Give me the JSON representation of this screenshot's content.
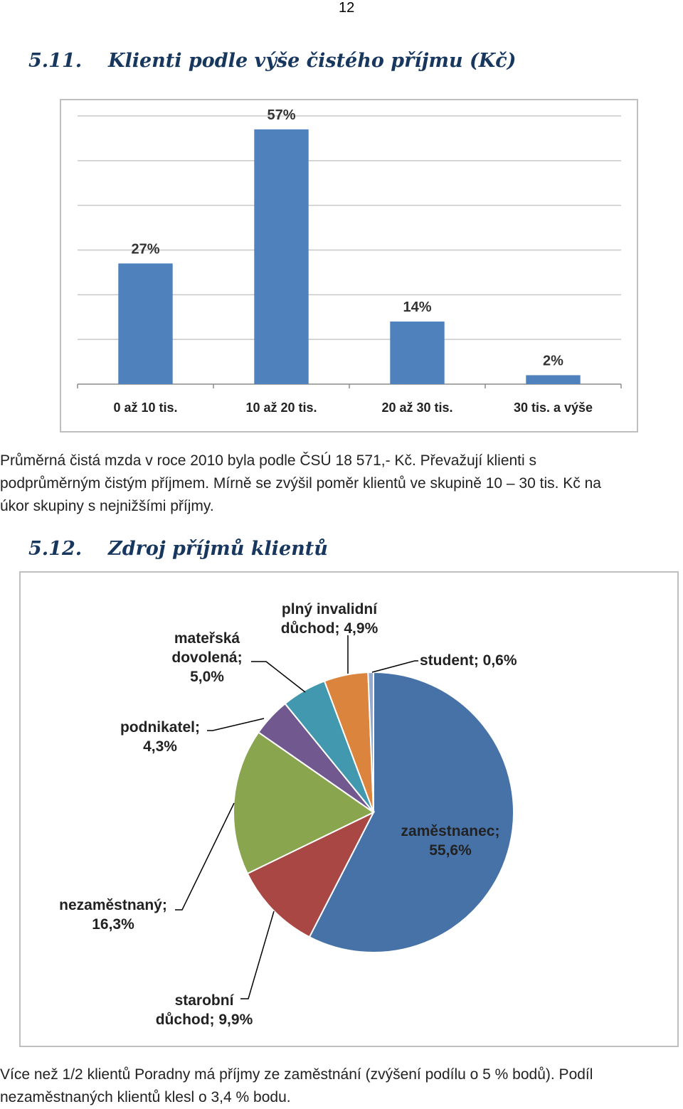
{
  "page_number": "12",
  "section1": {
    "number": "5.11.",
    "title": "Klienti podle výše čistého příjmu (Kč)"
  },
  "paragraph1": {
    "lines": [
      "Průměrná čistá mzda v roce 2010 byla podle ČSÚ 18 571,- Kč. Převažují klienti s",
      "podprůměrným čistým příjmem. Mírně se zvýšil poměr klientů ve skupině 10 – 30 tis. Kč na",
      "úkor skupiny s nejnižšími příjmy."
    ]
  },
  "section2": {
    "number": "5.12.",
    "title": "Zdroj příjmů klientů"
  },
  "paragraph2": {
    "lines": [
      "Více než 1/2 klientů Poradny má příjmy ze zaměstnání (zvýšení podílu o 5 % bodů). Podíl",
      "nezaměstnaných klientů klesl o 3,4 % bodu."
    ]
  },
  "chart_data": [
    {
      "type": "bar",
      "categories": [
        "0 až 10 tis.",
        "10 až 20 tis.",
        "20 až 30 tis.",
        "30 tis. a výše"
      ],
      "values": [
        27,
        57,
        14,
        2
      ],
      "value_labels": [
        "27%",
        "57%",
        "14%",
        "2%"
      ],
      "unit": "%",
      "ylim": [
        0,
        60
      ],
      "grid": true,
      "bar_color": "#4F81BD",
      "title": "",
      "xlabel": "",
      "ylabel": ""
    },
    {
      "type": "pie",
      "slices": [
        {
          "label": "zaměstnanec; 55,6%",
          "value": 55.6,
          "color": "#4672A8"
        },
        {
          "label": "starobní důchod; 9,9%",
          "value": 9.9,
          "color": "#A94744"
        },
        {
          "label": "nezaměstnaný; 16,3%",
          "value": 16.3,
          "color": "#89A54E"
        },
        {
          "label": "podnikatel; 4,3%",
          "value": 4.3,
          "color": "#71588F"
        },
        {
          "label": "mateřská dovolená; 5,0%",
          "value": 5.0,
          "color": "#4198AF"
        },
        {
          "label": "plný invalidní důchod; 4,9%",
          "value": 4.9,
          "color": "#DB843D"
        },
        {
          "label": "student; 0,6%",
          "value": 0.6,
          "color": "#93A9CF"
        }
      ],
      "title": ""
    }
  ]
}
